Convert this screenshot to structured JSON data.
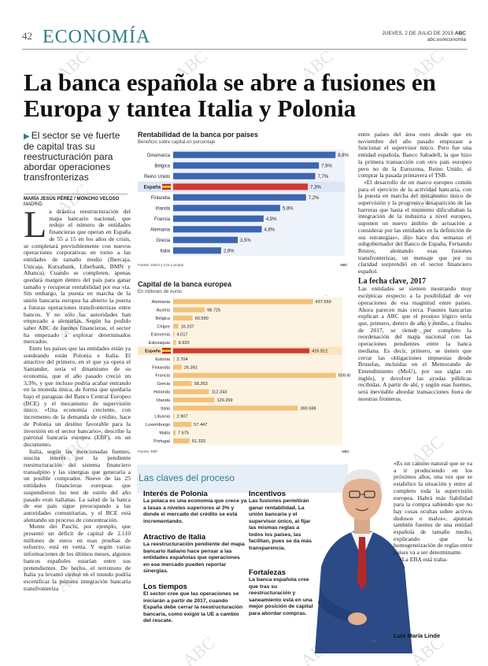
{
  "header": {
    "page_number": "42",
    "section": "ECONOMÍA",
    "date": "JUEVES, 2 DE JULIO DE 2015",
    "brand": "ABC",
    "url": "abc.es/economia"
  },
  "watermark": "ABC",
  "headline": "La banca española se abre a fusiones en Europa y tantea Italia y Polonia",
  "summary": "El sector se ve fuerte de capital tras su reestructuración para abordar operaciones transfronterizas",
  "byline": {
    "authors": "MARÍA JESÚS PÉREZ / MONCHO VELOSO",
    "city": "MADRID"
  },
  "body": {
    "dropcap": "L",
    "col1": [
      "a drástica reestructuración del mapa bancario nacional, que redujo el número de entidades financieras que operan en España de 55 a 15 en los años de crisis, se completará previsiblemente con nuevos operaciones corporativas en torno a las entidades de tamaño medio (Ibercaja, Unicaja, Kutxabank, Liberbank, BMN y Abanca). Cuando se completen, apenas quedará margen dentro del país para ganar tamaño y recuperar rentabilidad por esa vía. Sin embargo, la puesta en marcha de la unión bancaria europea ha abierto la puerta a futuras operaciones transfronterizas entre bancos. Y no sólo las autoridades han empezado a alentarlas. Según ha podido saber ABC de fuentes financieras, el sector ha empezado a explorar determinados mercados.",
      "Entre los países que las entidades están ya sondeando están Polonia e Italia. El atractivo del primero, en el que ya opera el Santander, sería el dinamismo de su economía, que el año pasado creció un 3,3%, y que incluso podría acabar entrando en la moneda única, de forma que quedaría bajo el paraguas del Banco Central Europeo (BCE) y el mecanismo de supervisión único. «Una economía creciente, con incremento de la demanda de crédito, hace de Polonia un destino favorable para la inversión en el sector bancario», describe la patronal bancaria europea (EBF), en un documento.",
      "Italia, según las mencionadas fuentes, suscita interés por la pendiente reestructuración del sistema financiero transalpino y las sinergias que generaría a un posible comprador. Nueve de las 25 entidades financieras europeas que suspendieron los test de estrés del año pasado eran italianas. La salud de la banca de ese país sigue preocupando a las autoridades comunitarias, y el BCE está alentando un proceso de concentración.",
      "Monte dei Paschi, por ejemplo, que presentó un déficit de capital de 2.110 millones de euros en esas pruebas de esfuerzo, está en venta. Y según varias informaciones de los últimos meses, algunos bancos españoles estarían entre sus pretendientes. De hecho, el terremoto de Italia ya levantó ciertos en el mundo podría escenificar la primera integración bancaria transfronteriza"
    ],
    "col3": [
      "entre países del área euro desde que en noviembre del año pasado empezase a funcionar el supervisor único. Pero fue una entidad española, Banco Sabadell, la que hizo la primera transacción con otro país europeo pero no de la Eurozona, Reino Unido, al comprar la pasada primavera el TSB.",
      "«El desarrollo de un marco europeo común para el ejercicio de la actividad bancaria, con la puesta en marcha del mecanismo único de supervisión y la progresiva desaparición de las barreras que hasta el momento dificultaban la integración de la industria a nivel europeo, suponen un nuevo ámbito de actuación a considerar por las entidades en la definición de sus estrategias», dijo hace dos semanas el subgobernador del Banco de España, Fernando Restoy, alentando esas fusiones transfronterizas, un mensaje que por su claridad sorprendió en el sector financiero español."
    ],
    "subhead": "La fecha clave, 2017",
    "col3b": [
      "Las entidades se sienten mostrando muy escépticas respecto a la posibilidad de ver operaciones de esa magnitud entre países. Ahora parecen más cerca. Fuentes bancarias explican a ABC que el proceso lógico sería que, primero, dentro de año y medio, a finales de 2017, se tienen por completo la reordenación del mapa nacional con las operaciones pendientes entre la banca mediana. Es decir, primero, se tienen que cerrar las obligaciones impuestas desde Bruselas, incluidas en el Memorando de Entendimiento (MoU), por sus siglas en inglés), y devolver las ayudas públicas recibidas. A partir de ahí, y según esas fuentes, será inevitable abordar transacciones fuera de nuestras fronteras."
    ],
    "quote": "«Es un camino natural que se va a ir produciendo en los próximos años, una vez que se estabilice la situación y entre al completo toda la supervisión europea. Habrá más fiabilidad para la compra sabiendo que no hay cosas ocultas sobre activos dudosos o malos», apuntan también fuentes de una entidad española de tamaño medio, explicando que la homogeneización de reglas entre países va a ser determinante.",
    "quote_end": "«La EBA está traba-"
  },
  "chart_data": [
    {
      "type": "bar",
      "title": "Rentabilidad de la banca por países",
      "subtitle": "Beneficio sobre capital en porcentaje",
      "source": "Fuente: Dolce y Cox y propia",
      "brand": "ABC",
      "categories": [
        "Dinamarca",
        "Bélgica",
        "Reino Unido",
        "España",
        "Finlandia",
        "Irlanda",
        "Francia",
        "Alemania",
        "Grecia",
        "Italia"
      ],
      "values": [
        8.8,
        7.9,
        7.7,
        7.3,
        7.2,
        5.8,
        4.9,
        4.8,
        3.5,
        2.6
      ],
      "labels": [
        "8,8%",
        "7,9%",
        "7,7%",
        "7,3%",
        "7,2%",
        "5,8%",
        "4,9%",
        "4,8%",
        "3,5%",
        "2,6%"
      ],
      "highlight": "España",
      "xlim": [
        0,
        9.3
      ],
      "colors": {
        "bar": "#3d66b0",
        "highlight": "#d13a2f"
      }
    },
    {
      "type": "bar",
      "title": "Capital de la banca europea",
      "subtitle": "En millones de euros",
      "source": "Fuente: EBF",
      "brand": "ABC",
      "categories": [
        "Alemania",
        "Austria",
        "Bélgica",
        "Chipre",
        "Eslovenia",
        "Eslovaquia",
        "España",
        "Estonia",
        "Finlandia",
        "Francia",
        "Grecia",
        "Holanda",
        "Irlanda",
        "Italia",
        "Lituania",
        "Luxemburgo",
        "Malta",
        "Portugal"
      ],
      "values": [
        437559,
        98725,
        60590,
        16207,
        4017,
        8920,
        426912,
        2704,
        26391,
        509400,
        58263,
        112343,
        129299,
        390598,
        2907,
        57447,
        7675,
        51333
      ],
      "labels": [
        "437.559",
        "98.725",
        "60.590",
        "16.207",
        "4.017",
        "8.920",
        "426.912",
        "2.704",
        "26.391",
        "509.400",
        "58.263",
        "112.343",
        "129.299",
        "390.598",
        "2.907",
        "57.447",
        "7.675",
        "51.333"
      ],
      "highlight": "España",
      "xlim": [
        0,
        530000
      ],
      "colors": {
        "bar": "#f2c27a",
        "highlight": "#d13a2f"
      }
    }
  ],
  "claves": {
    "title": "Las claves del proceso",
    "items": [
      {
        "heading": "Interés de Polonia",
        "text": "La polaca es una economía que crece ya a tasas a niveles superiores al 3% y donde el mercado del crédito se está incrementando."
      },
      {
        "heading": "Atractivo de Italia",
        "text": "La reestructuración pendiente del mapa bancario italiano hace pensar a las entidades españolas que operaciones en ese mercado pueden reportar sinergias."
      },
      {
        "heading": "Los tiempos",
        "text": "El sector cree que las operaciones se iniciarán a partir de 2017, cuando España debe cerrar la reestructuración bancaria, como exigió la UE a cambio del rescate."
      },
      {
        "heading": "Incentivos",
        "text": "Las fusiones permitirán ganar rentabilidad. La unión bancaria y el supervisor único, al fijar las mismas reglas a todos los países, las facilitan, pues se da más transparencia."
      },
      {
        "heading": "Fortalezas",
        "text": "La banca española cree que tras su reestructuración y saneamiento está en una mejor posición de capital para abordar compras."
      }
    ]
  },
  "photo": {
    "caption": "Luis María Linde",
    "credit": "EFE"
  }
}
